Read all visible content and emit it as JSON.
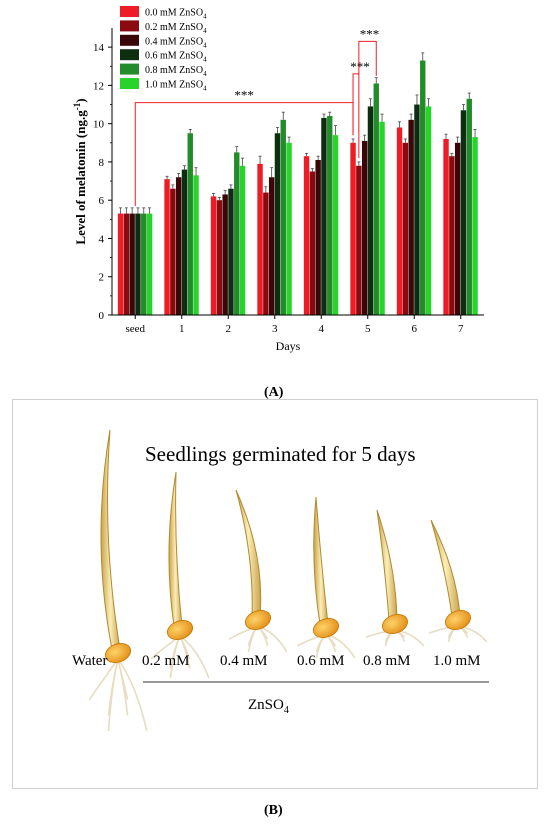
{
  "chart_data": {
    "type": "bar",
    "title": "",
    "xlabel": "Days",
    "ylabel_main": "Level of melatonin (ng.g",
    "ylabel_sup": "-1",
    "ylabel_end": ")",
    "categories": [
      "seed",
      "1",
      "2",
      "3",
      "4",
      "5",
      "6",
      "7"
    ],
    "ylim": [
      0,
      15
    ],
    "yticks": [
      "0",
      "2",
      "4",
      "6",
      "8",
      "10",
      "12",
      "14"
    ],
    "legend_position": "top-left",
    "series": [
      {
        "name": "0.0 mM ZnSO",
        "sub": "4",
        "color": "#ee1c24",
        "values": [
          5.3,
          7.1,
          6.2,
          7.9,
          8.3,
          9.0,
          9.8,
          9.2
        ],
        "errors": [
          0.3,
          0.15,
          0.15,
          0.4,
          0.15,
          0.2,
          0.3,
          0.25
        ]
      },
      {
        "name": "0.2 mM ZnSO",
        "sub": "4",
        "color": "#8b0a0f",
        "values": [
          5.3,
          6.6,
          6.0,
          6.4,
          7.5,
          7.8,
          9.0,
          8.3
        ],
        "errors": [
          0.3,
          0.2,
          0.15,
          0.3,
          0.15,
          0.2,
          0.2,
          0.15
        ]
      },
      {
        "name": "0.4 mM ZnSO",
        "sub": "4",
        "color": "#3a0608",
        "values": [
          5.3,
          7.2,
          6.3,
          7.2,
          8.1,
          9.1,
          10.2,
          9.0
        ],
        "errors": [
          0.3,
          0.2,
          0.2,
          0.5,
          0.2,
          0.3,
          0.3,
          0.3
        ]
      },
      {
        "name": "0.6 mM ZnSO",
        "sub": "4",
        "color": "#0e2e12",
        "values": [
          5.3,
          7.6,
          6.6,
          9.5,
          10.3,
          10.9,
          11.0,
          10.7
        ],
        "errors": [
          0.3,
          0.2,
          0.2,
          0.3,
          0.2,
          0.4,
          0.5,
          0.3
        ]
      },
      {
        "name": "0.8 mM ZnSO",
        "sub": "4",
        "color": "#238c2a",
        "values": [
          5.3,
          9.5,
          8.5,
          10.2,
          10.4,
          12.1,
          13.3,
          11.3
        ],
        "errors": [
          0.3,
          0.2,
          0.3,
          0.4,
          0.2,
          0.3,
          0.4,
          0.3
        ]
      },
      {
        "name": "1.0 mM ZnSO",
        "sub": "4",
        "color": "#28d42c",
        "values": [
          5.3,
          7.3,
          7.8,
          9.0,
          9.4,
          10.1,
          10.9,
          9.3
        ],
        "errors": [
          0.3,
          0.4,
          0.4,
          0.3,
          0.5,
          0.4,
          0.4,
          0.4
        ]
      }
    ],
    "annotations": [
      "***",
      "***",
      "***"
    ]
  },
  "panel_a_label": "(A)",
  "panel_b_label": "(B)",
  "panel_b": {
    "title": "Seedlings germinated for 5 days",
    "treatments": [
      "Water",
      "0.2 mM",
      "0.4 mM",
      "0.6 mM",
      "0.8 mM",
      "1.0 mM"
    ],
    "group_label_main": "ZnSO",
    "group_label_sub": "4"
  }
}
